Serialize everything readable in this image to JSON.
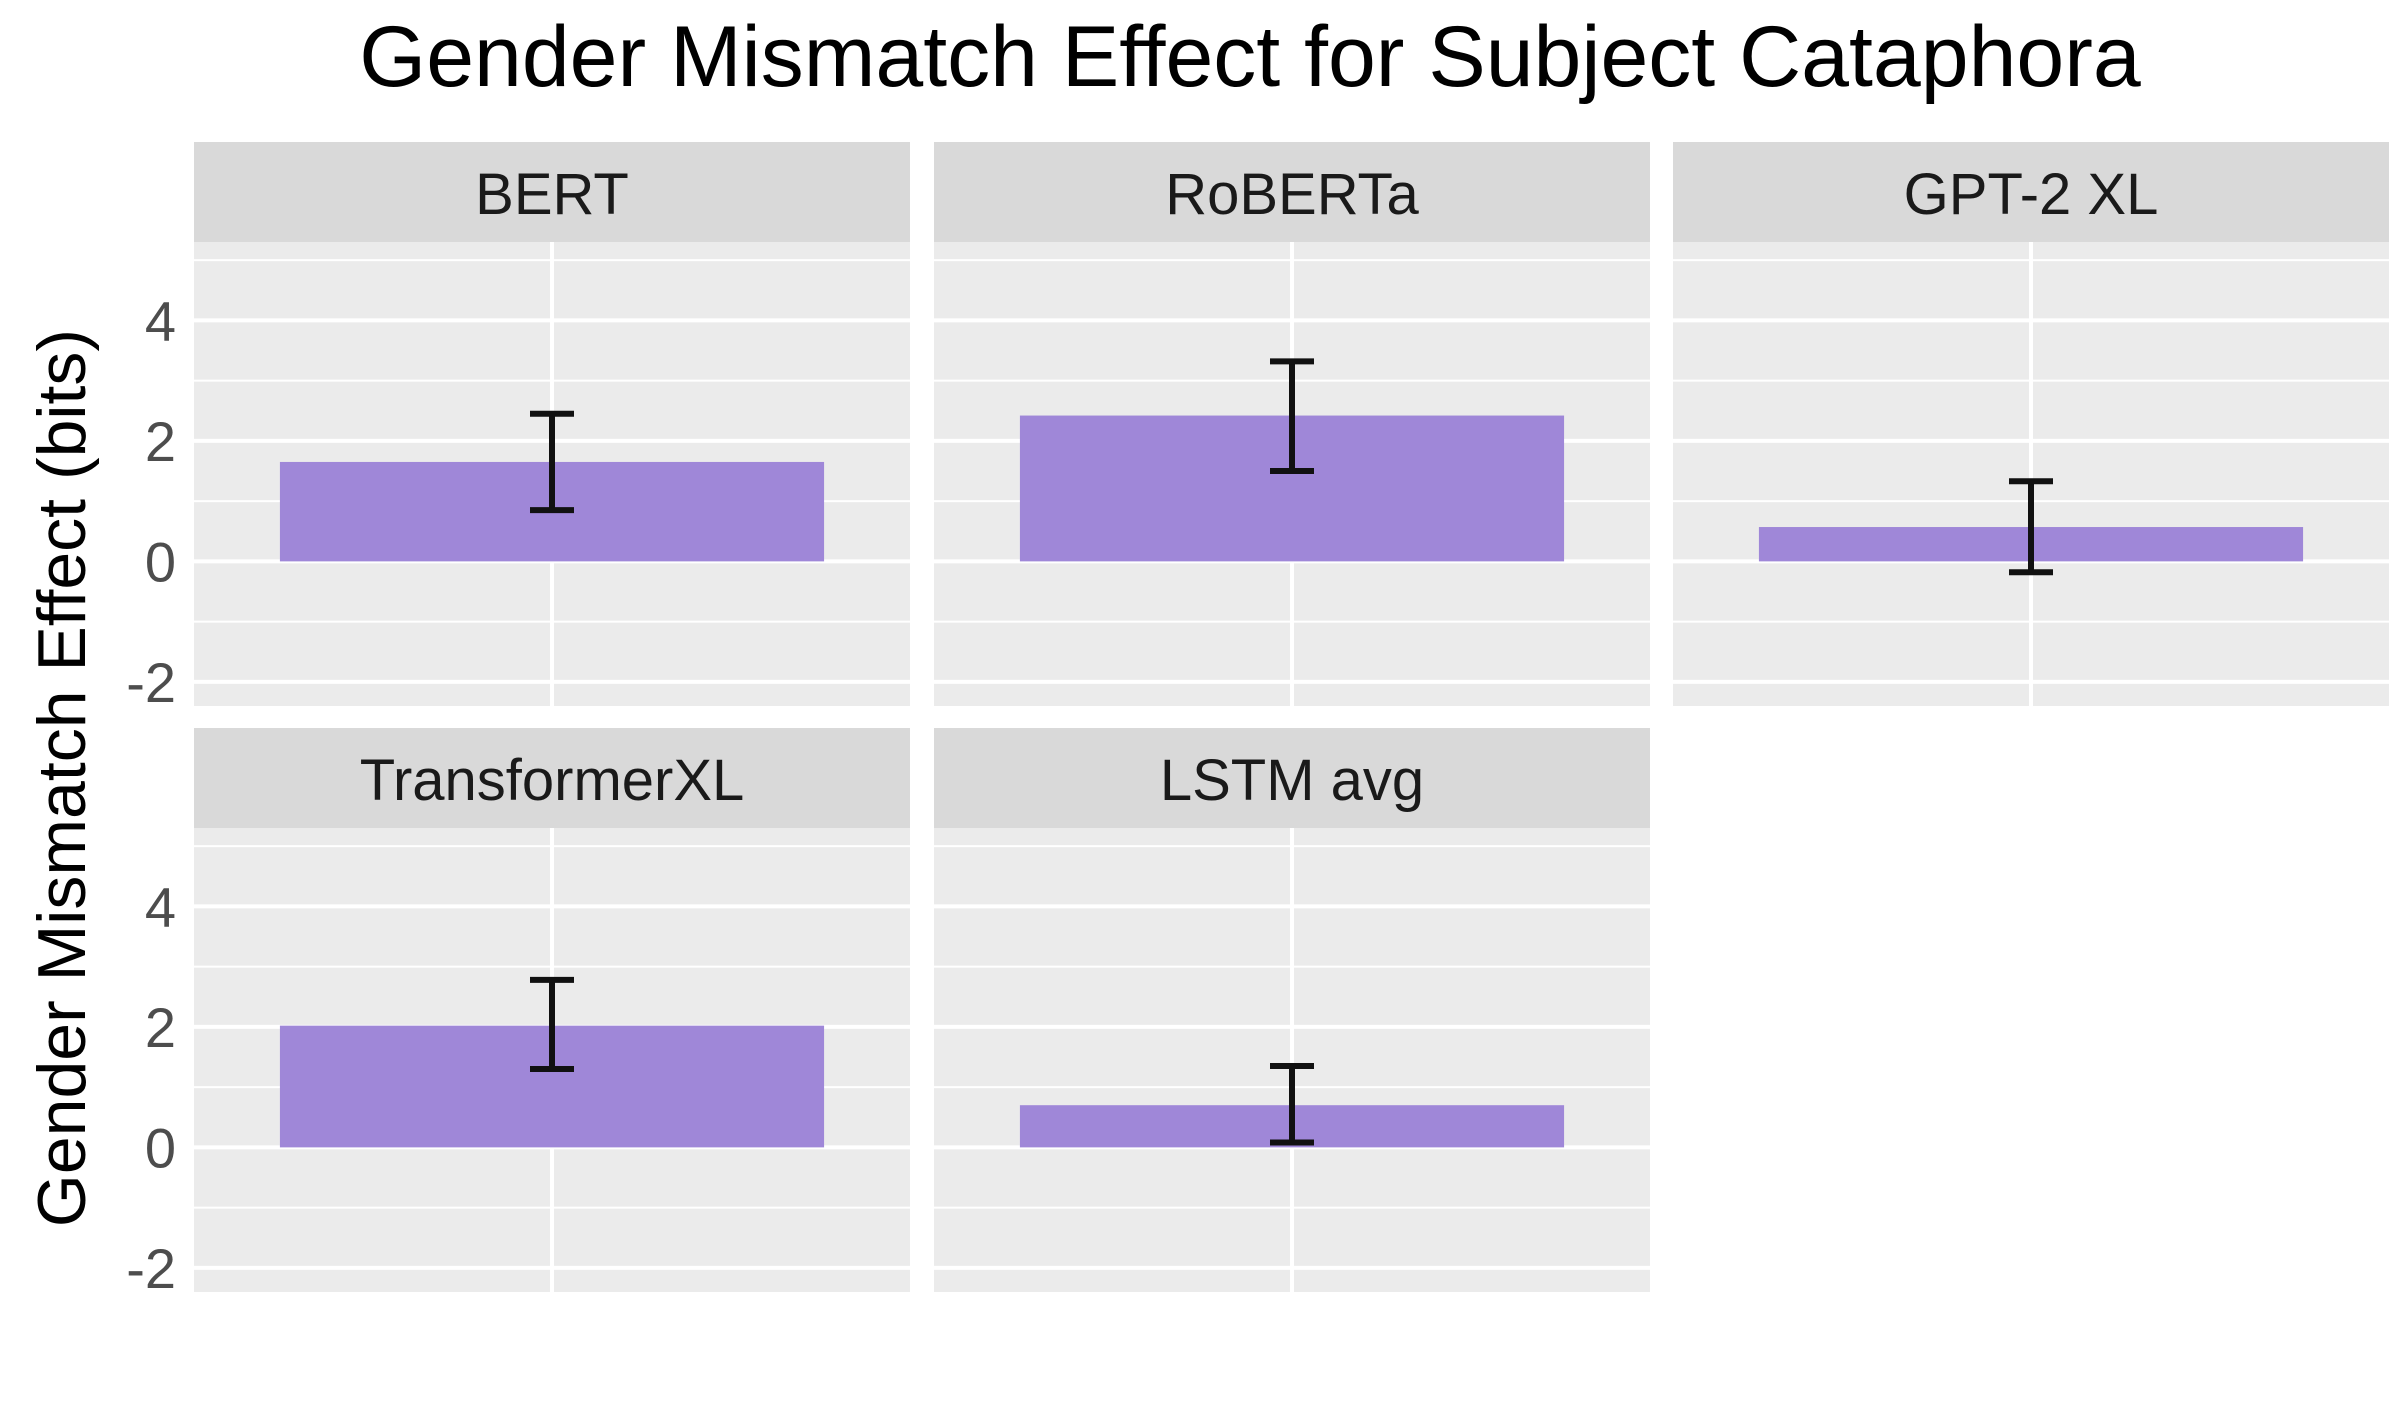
{
  "chart_data": {
    "type": "bar",
    "title": "Gender Mismatch Effect for Subject Cataphora",
    "ylabel": "Gender Mismatch Effect (bits)",
    "xlabel": "",
    "ylim": [
      -2.4,
      5.3
    ],
    "yticks": [
      -2,
      0,
      2,
      4
    ],
    "grid": true,
    "bar_color": "#9f87d8",
    "panel_bg": "#ebebeb",
    "strip_bg": "#d9d9d9",
    "facets": [
      {
        "name": "BERT",
        "value": 1.65,
        "err_low": 0.85,
        "err_high": 2.45
      },
      {
        "name": "RoBERTa",
        "value": 2.42,
        "err_low": 1.5,
        "err_high": 3.32
      },
      {
        "name": "GPT-2 XL",
        "value": 0.57,
        "err_low": -0.18,
        "err_high": 1.33
      },
      {
        "name": "TransformerXL",
        "value": 2.02,
        "err_low": 1.3,
        "err_high": 2.78
      },
      {
        "name": "LSTM avg",
        "value": 0.7,
        "err_low": 0.08,
        "err_high": 1.35
      }
    ]
  }
}
